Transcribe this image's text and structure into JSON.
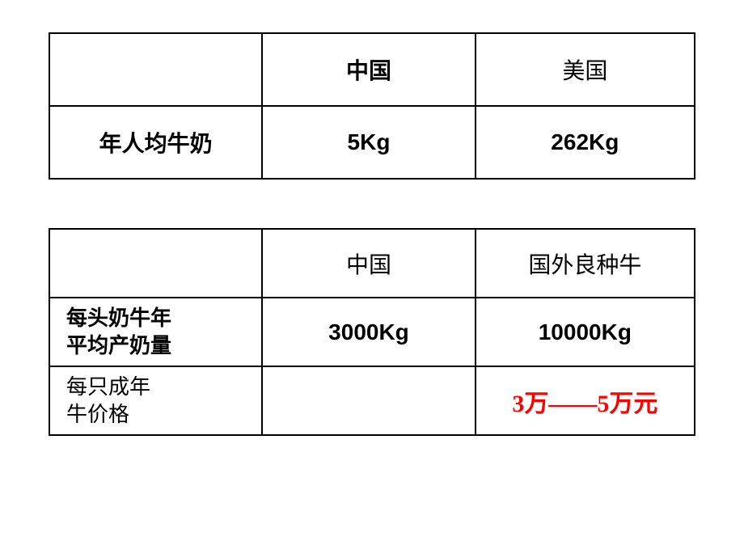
{
  "table1": {
    "type": "table",
    "border_color": "#000000",
    "border_width": 2,
    "background_color": "#ffffff",
    "font_size": 28,
    "font_weight": "bold",
    "text_color": "#000000",
    "columns": [
      "",
      "中国",
      "美国"
    ],
    "rows": [
      {
        "label": "年人均牛奶",
        "china": "5Kg",
        "usa": "262Kg"
      }
    ]
  },
  "table2": {
    "type": "table",
    "border_color": "#000000",
    "border_width": 2,
    "background_color": "#ffffff",
    "font_size": 28,
    "font_weight": "bold",
    "text_color": "#000000",
    "highlight_color": "#ff0000",
    "columns": [
      "",
      "中国",
      "国外良种牛"
    ],
    "rows": [
      {
        "label_line1": "每头奶牛年",
        "label_line2": "平均产奶量",
        "china": "3000Kg",
        "foreign": "10000Kg"
      },
      {
        "label_line1": "每只成年",
        "label_line2": "牛价格",
        "china": "",
        "foreign": "3万——5万元"
      }
    ]
  }
}
